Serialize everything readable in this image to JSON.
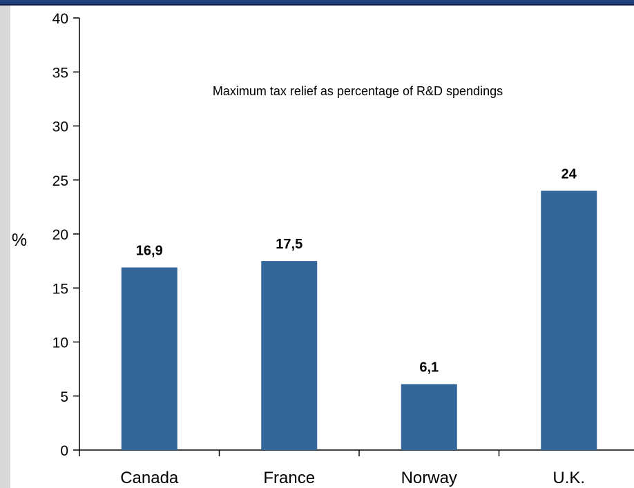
{
  "chart_data": {
    "type": "bar",
    "title": "Maximum tax relief as percentage of R&D spendings",
    "ylabel": "%",
    "xlabel": "",
    "categories": [
      "Canada",
      "France",
      "Norway",
      "U.K."
    ],
    "values": [
      16.9,
      17.5,
      6.1,
      24
    ],
    "value_labels": [
      "16,9",
      "17,5",
      "6,1",
      "24"
    ],
    "ylim": [
      0,
      40
    ],
    "yticks": [
      0,
      5,
      10,
      15,
      20,
      25,
      30,
      35,
      40
    ],
    "ytick_labels": [
      "0",
      "5",
      "10",
      "15",
      "20",
      "25",
      "30",
      "35",
      "40"
    ],
    "grid": false,
    "legend": "none",
    "bar_color": "#336699"
  }
}
